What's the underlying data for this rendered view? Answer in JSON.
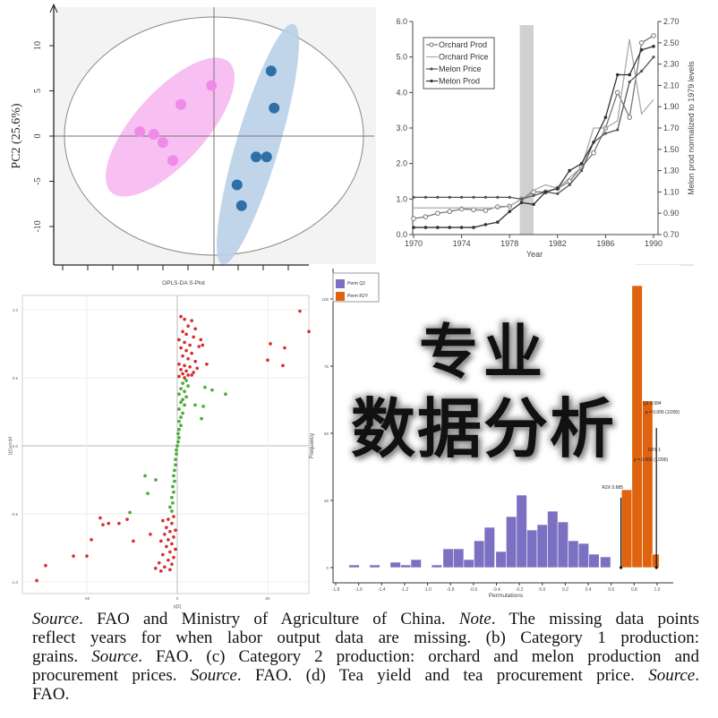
{
  "chart_data": [
    {
      "type": "scatter",
      "ylabel": "PC2 (25.6%)",
      "yticks": [
        10,
        5,
        0,
        -5,
        -10
      ],
      "series": [
        {
          "color": "#f08ae8",
          "points": [
            [
              -14.8,
              0.5
            ],
            [
              -12,
              0.2
            ],
            [
              -10.2,
              -0.7
            ],
            [
              -8.2,
              -2.7
            ],
            [
              -6.6,
              3.5
            ],
            [
              -0.5,
              5.6
            ]
          ]
        },
        {
          "color": "#2e6fa8",
          "points": [
            [
              11.4,
              7.2
            ],
            [
              12,
              3.1
            ],
            [
              8.4,
              -2.3
            ],
            [
              10.5,
              -2.3
            ],
            [
              4.6,
              -5.4
            ],
            [
              5.5,
              -7.7
            ]
          ]
        }
      ],
      "ellipse_colors": [
        "#f7bff2",
        "#b9d0e8"
      ],
      "grid": false
    },
    {
      "type": "line",
      "xlabel": "Year",
      "y2label": "Melon prod normalized to 1979 levels",
      "xticks": [
        1970,
        1974,
        1978,
        1982,
        1986,
        1990
      ],
      "yticks": [
        "0.0",
        "1.0",
        "2.0",
        "3.0",
        "4.0",
        "5.0",
        "6.0"
      ],
      "y2ticks": [
        "0.70",
        "0.90",
        "1.10",
        "1.30",
        "1.50",
        "1.70",
        "1.90",
        "2.10",
        "2.30",
        "2.50",
        "2.70"
      ],
      "ylim": [
        0,
        6
      ],
      "y2lim": [
        0.7,
        2.7
      ],
      "highlight_band": [
        1979,
        1980
      ],
      "legend": "top-left",
      "x": [
        1970,
        1971,
        1972,
        1973,
        1974,
        1975,
        1976,
        1977,
        1978,
        1979,
        1980,
        1981,
        1982,
        1983,
        1984,
        1985,
        1986,
        1987,
        1988,
        1989,
        1990
      ],
      "series": [
        {
          "name": "Orchard Prod",
          "color": "#777777",
          "marker": "circle",
          "values": [
            0.45,
            0.5,
            0.6,
            0.65,
            0.72,
            0.7,
            0.68,
            0.78,
            0.8,
            1.0,
            1.2,
            1.2,
            1.3,
            1.5,
            1.9,
            2.3,
            3.0,
            4.0,
            3.3,
            5.4,
            5.6
          ]
        },
        {
          "name": "Orchard Price",
          "color": "#aaaaaa",
          "marker": "none",
          "values": [
            0.75,
            0.75,
            0.75,
            0.75,
            0.75,
            0.75,
            0.75,
            0.75,
            0.8,
            1.0,
            1.25,
            1.4,
            1.3,
            1.6,
            1.9,
            3.0,
            3.0,
            3.2,
            5.5,
            3.4,
            3.8
          ]
        },
        {
          "name": "Melon Price",
          "color": "#555555",
          "marker": "star",
          "values": [
            1.05,
            1.05,
            1.05,
            1.05,
            1.05,
            1.05,
            1.05,
            1.05,
            1.05,
            1.0,
            1.1,
            1.2,
            1.15,
            1.4,
            1.8,
            2.6,
            2.85,
            2.95,
            4.3,
            4.6,
            5.0
          ]
        },
        {
          "name": "Melon Prod",
          "color": "#333333",
          "marker": "dot",
          "values": [
            0.2,
            0.2,
            0.2,
            0.2,
            0.2,
            0.2,
            0.28,
            0.35,
            0.65,
            0.9,
            0.85,
            1.2,
            1.3,
            1.8,
            2.0,
            2.6,
            3.3,
            4.5,
            4.5,
            5.2,
            5.3
          ]
        }
      ]
    },
    {
      "type": "scatter",
      "title": "OPLS-DA S-Plot",
      "xlabel": "p[1]",
      "ylabel": "p(corr)[1]",
      "xticks": [
        "-50",
        "0",
        "50"
      ],
      "yticks": [
        "1.0",
        "0.5",
        "0.0",
        "-0.5",
        "-1.0"
      ],
      "ylim": [
        -1.05,
        1.05
      ],
      "grid": true,
      "series": [
        {
          "color": "#e8282a",
          "points": [
            [
              67.8,
              0.99
            ],
            [
              72.8,
              0.84
            ],
            [
              51.5,
              0.75
            ],
            [
              59.4,
              0.72
            ],
            [
              50,
              0.63
            ],
            [
              58.4,
              0.59
            ],
            [
              16.3,
              0.6
            ],
            [
              14,
              0.74
            ],
            [
              13,
              0.78
            ],
            [
              2,
              0.95
            ],
            [
              4,
              0.93
            ],
            [
              8,
              0.92
            ],
            [
              6,
              0.88
            ],
            [
              10,
              0.86
            ],
            [
              3,
              0.84
            ],
            [
              5,
              0.82
            ],
            [
              9,
              0.8
            ],
            [
              1,
              0.78
            ],
            [
              4,
              0.76
            ],
            [
              7,
              0.74
            ],
            [
              12,
              0.73
            ],
            [
              2,
              0.72
            ],
            [
              5,
              0.7
            ],
            [
              8,
              0.68
            ],
            [
              3,
              0.66
            ],
            [
              6,
              0.64
            ],
            [
              10,
              0.62
            ],
            [
              1,
              0.6
            ],
            [
              4,
              0.59
            ],
            [
              7,
              0.58
            ],
            [
              11,
              0.57
            ],
            [
              2,
              0.56
            ],
            [
              5,
              0.55
            ],
            [
              9,
              0.54
            ],
            [
              3,
              0.53
            ],
            [
              6,
              0.52
            ],
            [
              1,
              0.51
            ],
            [
              4,
              0.5
            ],
            [
              8,
              0.52
            ],
            [
              -2,
              -0.52
            ],
            [
              -5,
              -0.54
            ],
            [
              -8,
              -0.55
            ],
            [
              -3,
              -0.57
            ],
            [
              -6,
              -0.6
            ],
            [
              -1,
              -0.62
            ],
            [
              -4,
              -0.63
            ],
            [
              -7,
              -0.65
            ],
            [
              -2,
              -0.67
            ],
            [
              -5,
              -0.69
            ],
            [
              -9,
              -0.7
            ],
            [
              -3,
              -0.72
            ],
            [
              -6,
              -0.74
            ],
            [
              -1,
              -0.76
            ],
            [
              -4,
              -0.78
            ],
            [
              -8,
              -0.8
            ],
            [
              -2,
              -0.82
            ],
            [
              -5,
              -0.84
            ],
            [
              -10,
              -0.86
            ],
            [
              -3,
              -0.87
            ],
            [
              -7,
              -0.89
            ],
            [
              -12,
              -0.9
            ],
            [
              -4,
              -0.91
            ],
            [
              -9,
              -0.92
            ],
            [
              -42.6,
              -0.53
            ],
            [
              -41.1,
              -0.58
            ],
            [
              -38,
              -0.57
            ],
            [
              -32.2,
              -0.57
            ],
            [
              -27.7,
              -0.54
            ],
            [
              -47.5,
              -0.69
            ],
            [
              -24.3,
              -0.7
            ],
            [
              -14.9,
              -0.65
            ],
            [
              -57.4,
              -0.81
            ],
            [
              -50,
              -0.81
            ],
            [
              -72.8,
              -0.88
            ],
            [
              -77.7,
              -0.99
            ]
          ]
        },
        {
          "color": "#2ec42e",
          "points": [
            [
              15.3,
              0.43
            ],
            [
              19.3,
              0.41
            ],
            [
              26.7,
              0.38
            ],
            [
              9.9,
              0.3
            ],
            [
              14.4,
              0.29
            ],
            [
              13.4,
              0.2
            ],
            [
              5,
              0.48
            ],
            [
              3,
              0.46
            ],
            [
              6,
              0.44
            ],
            [
              2,
              0.42
            ],
            [
              4,
              0.4
            ],
            [
              1,
              0.38
            ],
            [
              5,
              0.36
            ],
            [
              3,
              0.34
            ],
            [
              2,
              0.32
            ],
            [
              4,
              0.3
            ],
            [
              1,
              0.27
            ],
            [
              3,
              0.24
            ],
            [
              2,
              0.21
            ],
            [
              1,
              0.18
            ],
            [
              2,
              0.15
            ],
            [
              1,
              0.12
            ],
            [
              0.5,
              0.09
            ],
            [
              1,
              0.06
            ],
            [
              0.5,
              0.03
            ],
            [
              0,
              0
            ],
            [
              -0.5,
              -0.03
            ],
            [
              -0.5,
              -0.06
            ],
            [
              -1,
              -0.1
            ],
            [
              -1,
              -0.14
            ],
            [
              -1.5,
              -0.18
            ],
            [
              -2,
              -0.22
            ],
            [
              -1.5,
              -0.26
            ],
            [
              -2.5,
              -0.3
            ],
            [
              -2,
              -0.34
            ],
            [
              -3,
              -0.38
            ],
            [
              -2.5,
              -0.42
            ],
            [
              -4,
              -0.45
            ],
            [
              -3,
              -0.48
            ],
            [
              -17.8,
              -0.22
            ],
            [
              -11.9,
              -0.25
            ],
            [
              -16.3,
              -0.35
            ],
            [
              -26.2,
              -0.49
            ]
          ]
        }
      ]
    },
    {
      "type": "bar",
      "xlabel": "Permutations",
      "ylabel": "Frequency",
      "xticks": [
        "-1.8",
        "-1.6",
        "-1.4",
        "-1.2",
        "-1.0",
        "-0.8",
        "-0.6",
        "-0.4",
        "-0.2",
        "0.0",
        "0.2",
        "0.4",
        "0.6",
        "0.8",
        "1.0"
      ],
      "yticks": [
        "0",
        "25",
        "50",
        "75",
        "100"
      ],
      "legend": "top-left",
      "series": [
        {
          "name": "Perm Q2",
          "color": "#7b70c2",
          "x": [
            -1.64,
            -1.46,
            -1.28,
            -1.19,
            -1.1,
            -0.92,
            -0.82,
            -0.73,
            -0.64,
            -0.55,
            -0.46,
            -0.36,
            -0.27,
            -0.18,
            -0.09,
            0.0,
            0.09,
            0.18,
            0.27,
            0.36,
            0.45,
            0.55
          ],
          "values": [
            1,
            1,
            2,
            1,
            3,
            1,
            7,
            7,
            3,
            10,
            15,
            6,
            19,
            27,
            14,
            16,
            21,
            17,
            10,
            9,
            5,
            4
          ]
        },
        {
          "name": "Perm R2Y",
          "color": "#e0640f",
          "x": [
            0.735,
            0.826,
            0.917,
            1.0
          ],
          "values": [
            29,
            105,
            62,
            5
          ]
        }
      ],
      "annotations": {
        "r2x": "R2X 0.685",
        "q2": "Q2 0.994",
        "q2_p": "p = 0.005 (1/200)",
        "r2y": "R2Y 1",
        "r2y_p": "p = 0.005 (1/200)"
      }
    }
  ],
  "overlay": {
    "line1": "专业",
    "line2": "数据分析"
  },
  "caption": {
    "l1a": "Source",
    "l1b": ". FAO and Ministry of Agriculture of China. ",
    "l1c": "Note",
    "l1d": ". The missing data points",
    "l2": "reflect years for when labor output data are missing. (b) Category 1 production:",
    "l3a": "grains. ",
    "l3b": "Source",
    "l3c": ". FAO. (c) Category 2 production: orchard and melon production and",
    "l4a": "procurement prices. ",
    "l4b": "Source",
    "l4c": ". FAO. (d) Tea yield and tea procurement price. ",
    "l4d": "Source",
    "l4e": ".",
    "l5": "FAO."
  }
}
